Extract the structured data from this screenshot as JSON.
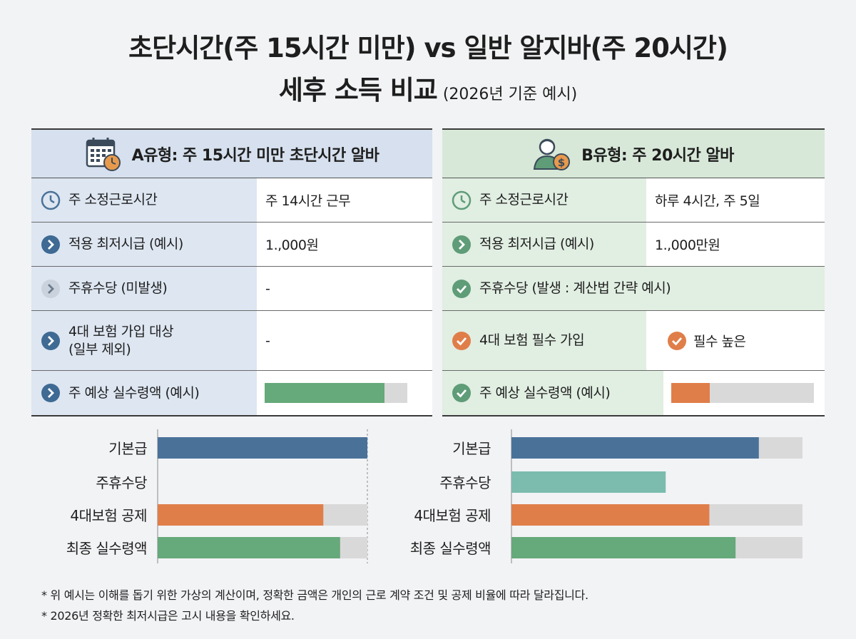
{
  "title": {
    "line1": "초단시간(주 15시간 미만) vs 일반 알지바(주 20시간)",
    "line2": "세후 소득 비교",
    "sub": "(2026년 기준 예시)"
  },
  "panel_a": {
    "header": "A유형: 주 15시간 미만 초단시간 알바",
    "rows": [
      {
        "label": "주 소정근로시간",
        "value": "주 14시간 근무",
        "icon": "clock-icon"
      },
      {
        "label": "적용 최저시급 (예시)",
        "value": "1.,000원",
        "icon": "chevron-right-icon"
      },
      {
        "label": "주휴수당 (미발생)",
        "value": "-",
        "icon": "chevron-right-icon"
      },
      {
        "label": "4대 보험 가입 대상",
        "label2": "(일부 제외)",
        "value": "-",
        "icon": "chevron-right-icon"
      },
      {
        "label": "주 예상 실수령액 (예시)",
        "bar": 0.84,
        "icon": "chevron-right-icon"
      }
    ]
  },
  "panel_b": {
    "header": "B유형: 주 20시간 알바",
    "rows": [
      {
        "label": "주 소정근로시간",
        "value": "하루 4시간, 주 5일",
        "icon": "clock-icon"
      },
      {
        "label": "적용 최저시급 (예시)",
        "value": "1.,000만원",
        "icon": "chevron-right-icon"
      },
      {
        "label": "주휴수당 (발생 : 계산법 간략 예시)",
        "icon": "check-icon"
      },
      {
        "label": "4대 보험 필수 가입",
        "value": "필수 높은",
        "icon": "check-icon"
      },
      {
        "label": "주 예상 실수령액 (예시)",
        "bar": 0.27,
        "icon": "check-icon"
      }
    ]
  },
  "colors": {
    "blue": "#4a7299",
    "green": "#66a97a",
    "orange": "#e07e49",
    "teal": "#7bbcae",
    "gray": "#d9d9d9"
  },
  "chart_data": [
    {
      "type": "bar",
      "orientation": "horizontal",
      "categories": [
        "기본급",
        "주휴수당",
        "4대보험 공제",
        "최종 실수령액"
      ],
      "values": [
        1.0,
        0.0,
        0.79,
        0.87
      ],
      "xlim": [
        0,
        1
      ],
      "colors": [
        "#4a7299",
        "#7bbcae",
        "#e07e49",
        "#66a97a"
      ]
    },
    {
      "type": "bar",
      "orientation": "horizontal",
      "categories": [
        "기본급",
        "주휴수당",
        "4대보험 공제",
        "최종 실수령액"
      ],
      "values": [
        0.85,
        0.53,
        0.68,
        0.77
      ],
      "xlim": [
        0,
        1
      ],
      "colors": [
        "#4a7299",
        "#7bbcae",
        "#e07e49",
        "#66a97a"
      ]
    }
  ],
  "notes": [
    "* 위 예시는 이해를 돕기 위한 가상의 계산이며, 정확한 금액은 개인의 근로 계약 조건 및 공제 비율에 따라 달라집니다.",
    "* 2026년 정확한 최저시급은 고시 내용을 확인하세요."
  ]
}
